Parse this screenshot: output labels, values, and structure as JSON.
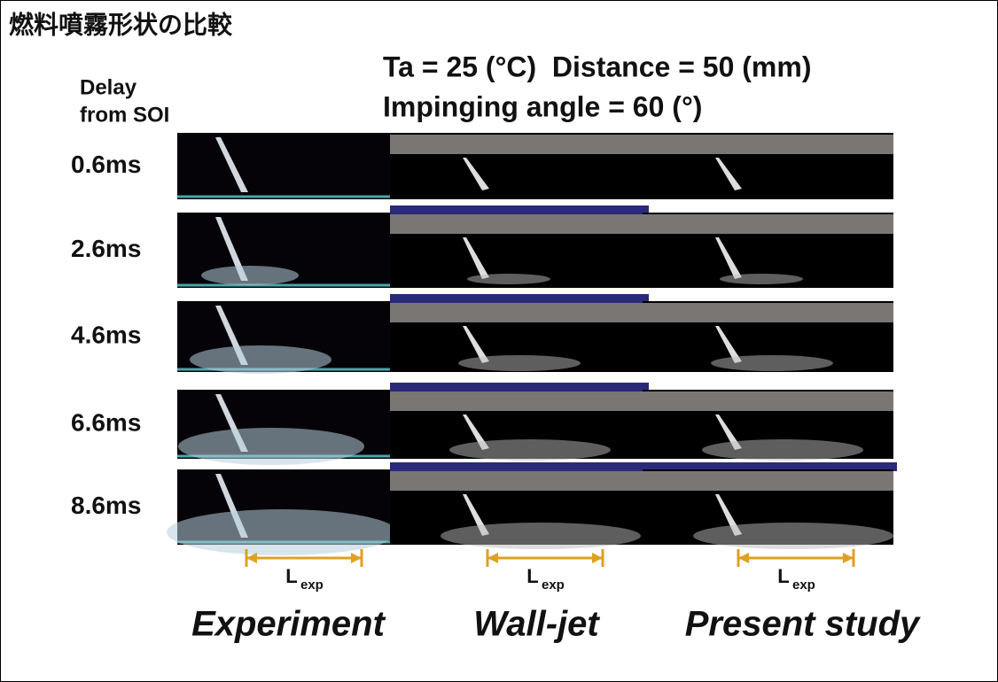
{
  "header": {
    "title": "燃料噴霧形状の比較"
  },
  "conditions": [
    "Ta = 25 (°C)  Distance = 50 (mm)",
    "Impinging angle = 60 (°)"
  ],
  "delay_label": [
    "Delay",
    "from SOI"
  ],
  "rows": [
    "0.6ms",
    "2.6ms",
    "4.6ms",
    "6.6ms",
    "8.6ms"
  ],
  "length_label": {
    "main": "L",
    "sub": "exp"
  },
  "columns": [
    "Experiment",
    "Wall-jet",
    "Present study"
  ]
}
